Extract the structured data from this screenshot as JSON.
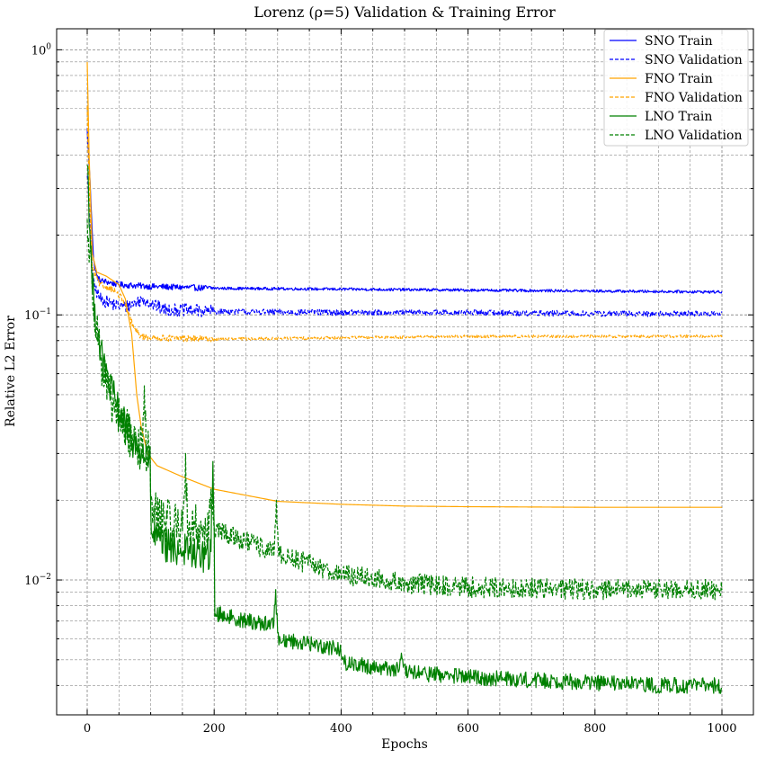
{
  "chart_data": {
    "type": "line",
    "title": "Lorenz (ρ=5) Validation & Training Error",
    "xlabel": "Epochs",
    "ylabel": "Relative L2 Error",
    "xlim": [
      -50,
      1050
    ],
    "ylim": [
      0.0031,
      1.2
    ],
    "yscale": "log",
    "grid": "major and minor, dashed",
    "legend_position": "top-right",
    "x_ticks": [
      0,
      200,
      400,
      600,
      800,
      1000
    ],
    "x_minor_ticks": [
      50,
      100,
      150,
      250,
      300,
      350,
      450,
      500,
      550,
      650,
      700,
      750,
      850,
      900,
      950
    ],
    "y_ticks": [
      {
        "value": 1.0,
        "base": "10",
        "exp": "0"
      },
      {
        "value": 0.1,
        "base": "10",
        "exp": "−1"
      },
      {
        "value": 0.01,
        "base": "10",
        "exp": "−2"
      }
    ],
    "y_minor_ticks": [
      0.004,
      0.005,
      0.006,
      0.007,
      0.008,
      0.009,
      0.02,
      0.03,
      0.04,
      0.05,
      0.06,
      0.07,
      0.08,
      0.09,
      0.2,
      0.3,
      0.4,
      0.5,
      0.6,
      0.7,
      0.8,
      0.9
    ],
    "series": [
      {
        "name": "SNO Train",
        "color": "#0000ff",
        "dash": "solid",
        "noise": 0.012,
        "points": [
          [
            0,
            0.5
          ],
          [
            5,
            0.3
          ],
          [
            10,
            0.16
          ],
          [
            15,
            0.14
          ],
          [
            20,
            0.135
          ],
          [
            50,
            0.13
          ],
          [
            100,
            0.128
          ],
          [
            200,
            0.126
          ],
          [
            400,
            0.125
          ],
          [
            600,
            0.124
          ],
          [
            800,
            0.123
          ],
          [
            1000,
            0.122
          ]
        ]
      },
      {
        "name": "SNO Validation",
        "color": "#0000ff",
        "dash": "dashed",
        "noise": 0.025,
        "points": [
          [
            0,
            0.35
          ],
          [
            5,
            0.2
          ],
          [
            10,
            0.13
          ],
          [
            20,
            0.115
          ],
          [
            40,
            0.11
          ],
          [
            60,
            0.107
          ],
          [
            90,
            0.115
          ],
          [
            100,
            0.11
          ],
          [
            120,
            0.105
          ],
          [
            200,
            0.103
          ],
          [
            400,
            0.102
          ],
          [
            600,
            0.102
          ],
          [
            800,
            0.101
          ],
          [
            1000,
            0.101
          ]
        ]
      },
      {
        "name": "FNO Train",
        "color": "#ffa500",
        "dash": "solid",
        "noise": 0.0,
        "points": [
          [
            0,
            0.9
          ],
          [
            3,
            0.4
          ],
          [
            8,
            0.17
          ],
          [
            15,
            0.145
          ],
          [
            30,
            0.14
          ],
          [
            50,
            0.13
          ],
          [
            60,
            0.115
          ],
          [
            70,
            0.085
          ],
          [
            78,
            0.05
          ],
          [
            85,
            0.038
          ],
          [
            95,
            0.03
          ],
          [
            110,
            0.027
          ],
          [
            150,
            0.0245
          ],
          [
            200,
            0.022
          ],
          [
            300,
            0.0198
          ],
          [
            400,
            0.0193
          ],
          [
            500,
            0.019
          ],
          [
            600,
            0.0189
          ],
          [
            800,
            0.0188
          ],
          [
            1000,
            0.0188
          ]
        ]
      },
      {
        "name": "FNO Validation",
        "color": "#ffa500",
        "dash": "dashed",
        "noise": 0.012,
        "points": [
          [
            0,
            0.6
          ],
          [
            3,
            0.3
          ],
          [
            8,
            0.15
          ],
          [
            20,
            0.13
          ],
          [
            40,
            0.125
          ],
          [
            55,
            0.115
          ],
          [
            65,
            0.1
          ],
          [
            75,
            0.088
          ],
          [
            85,
            0.083
          ],
          [
            100,
            0.082
          ],
          [
            200,
            0.081
          ],
          [
            400,
            0.082
          ],
          [
            600,
            0.083
          ],
          [
            800,
            0.083
          ],
          [
            1000,
            0.083
          ]
        ]
      },
      {
        "name": "LNO Train",
        "color": "#008000",
        "dash": "solid",
        "noise": 0.07,
        "spikes": [
          [
            157,
            0.0125
          ],
          [
            198,
            0.028
          ],
          [
            297,
            0.0092
          ],
          [
            495,
            0.0053
          ]
        ],
        "points": [
          [
            0,
            0.4
          ],
          [
            3,
            0.25
          ],
          [
            8,
            0.13
          ],
          [
            15,
            0.09
          ],
          [
            25,
            0.065
          ],
          [
            40,
            0.05
          ],
          [
            60,
            0.038
          ],
          [
            80,
            0.031
          ],
          [
            99,
            0.028
          ],
          [
            101,
            0.015
          ],
          [
            120,
            0.0135
          ],
          [
            150,
            0.013
          ],
          [
            180,
            0.0125
          ],
          [
            199,
            0.0122
          ],
          [
            201,
            0.0075
          ],
          [
            250,
            0.007
          ],
          [
            296,
            0.0068
          ],
          [
            300,
            0.006
          ],
          [
            340,
            0.0058
          ],
          [
            399,
            0.0055
          ],
          [
            401,
            0.0049
          ],
          [
            450,
            0.0047
          ],
          [
            494,
            0.0046
          ],
          [
            500,
            0.0045
          ],
          [
            600,
            0.0043
          ],
          [
            700,
            0.0042
          ],
          [
            800,
            0.0041
          ],
          [
            900,
            0.004
          ],
          [
            1000,
            0.004
          ]
        ]
      },
      {
        "name": "LNO Validation",
        "color": "#008000",
        "dash": "dashed",
        "noise": 0.09,
        "spikes": [
          [
            90,
            0.054
          ],
          [
            155,
            0.03
          ],
          [
            195,
            0.022
          ],
          [
            298,
            0.02
          ]
        ],
        "points": [
          [
            0,
            0.22
          ],
          [
            3,
            0.18
          ],
          [
            8,
            0.13
          ],
          [
            15,
            0.09
          ],
          [
            25,
            0.06
          ],
          [
            40,
            0.045
          ],
          [
            60,
            0.037
          ],
          [
            80,
            0.032
          ],
          [
            99,
            0.03
          ],
          [
            101,
            0.018
          ],
          [
            130,
            0.0165
          ],
          [
            160,
            0.016
          ],
          [
            200,
            0.0155
          ],
          [
            250,
            0.014
          ],
          [
            300,
            0.0125
          ],
          [
            350,
            0.0115
          ],
          [
            400,
            0.0105
          ],
          [
            500,
            0.0097
          ],
          [
            600,
            0.0094
          ],
          [
            700,
            0.0093
          ],
          [
            800,
            0.0092
          ],
          [
            900,
            0.0092
          ],
          [
            1000,
            0.0092
          ]
        ]
      }
    ]
  }
}
